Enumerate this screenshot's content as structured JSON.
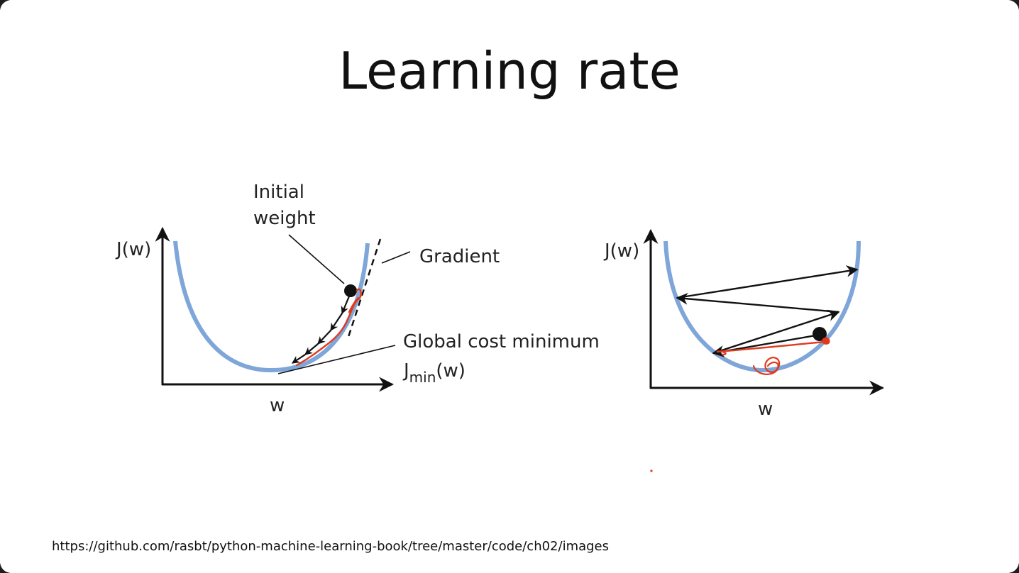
{
  "slide": {
    "title": "Learning rate",
    "source_url": "https://github.com/rasbt/python-machine-learning-book/tree/master/code/ch02/images"
  },
  "left_diagram": {
    "y_axis_label": "J(w)",
    "x_axis_label": "w",
    "initial_weight_line1": "Initial",
    "initial_weight_line2": "weight",
    "gradient_label": "Gradient",
    "global_min_label": "Global cost minimum",
    "jmin_base": "J",
    "jmin_sub": "min",
    "jmin_arg": "(w)"
  },
  "right_diagram": {
    "y_axis_label": "J(w)",
    "x_axis_label": "w"
  },
  "colors": {
    "curve": "#7ea6d8",
    "ink": "#111111",
    "annotation": "#e03a1e"
  }
}
